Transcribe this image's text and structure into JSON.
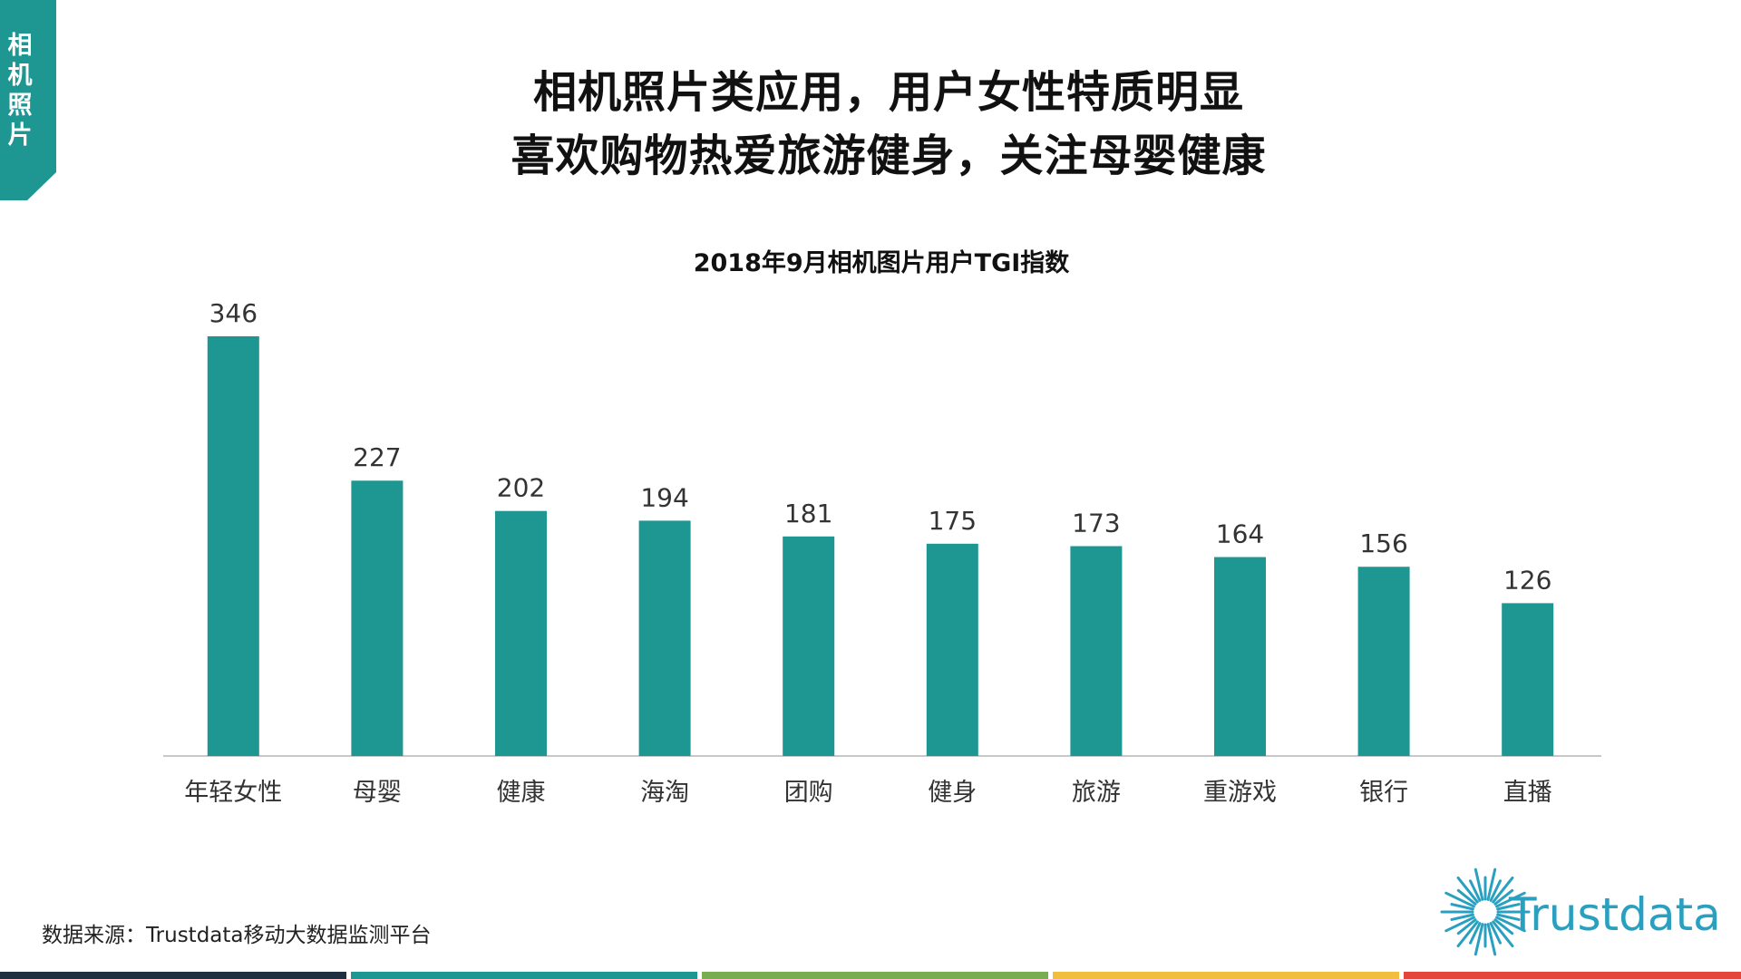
{
  "colors": {
    "accent": "#1e9692",
    "bar": "#1e9692",
    "axis": "#c8c8c8",
    "footer": [
      "#1f2f3f",
      "#1e9692",
      "#78ad52",
      "#f2be3d",
      "#e5463c"
    ],
    "logo": "#2aa0c0"
  },
  "side_tab": {
    "label": "相机照片"
  },
  "headline": {
    "line1": "相机照片类应用，用户女性特质明显",
    "line2": "喜欢购物热爱旅游健身，关注母婴健康"
  },
  "chart_data": {
    "type": "bar",
    "title": "2018年9月相机图片用户TGI指数",
    "categories": [
      "年轻女性",
      "母婴",
      "健康",
      "海淘",
      "团购",
      "健身",
      "旅游",
      "重游戏",
      "银行",
      "直播"
    ],
    "values": [
      346,
      227,
      202,
      194,
      181,
      175,
      173,
      164,
      156,
      126
    ],
    "xlabel": "",
    "ylabel": "",
    "ylim": [
      0,
      346
    ],
    "grid": false,
    "data_labels": true
  },
  "source": {
    "text": "数据来源：Trustdata移动大数据监测平台"
  },
  "logo": {
    "text": "Trustdata",
    "icon": "sunburst-icon"
  }
}
